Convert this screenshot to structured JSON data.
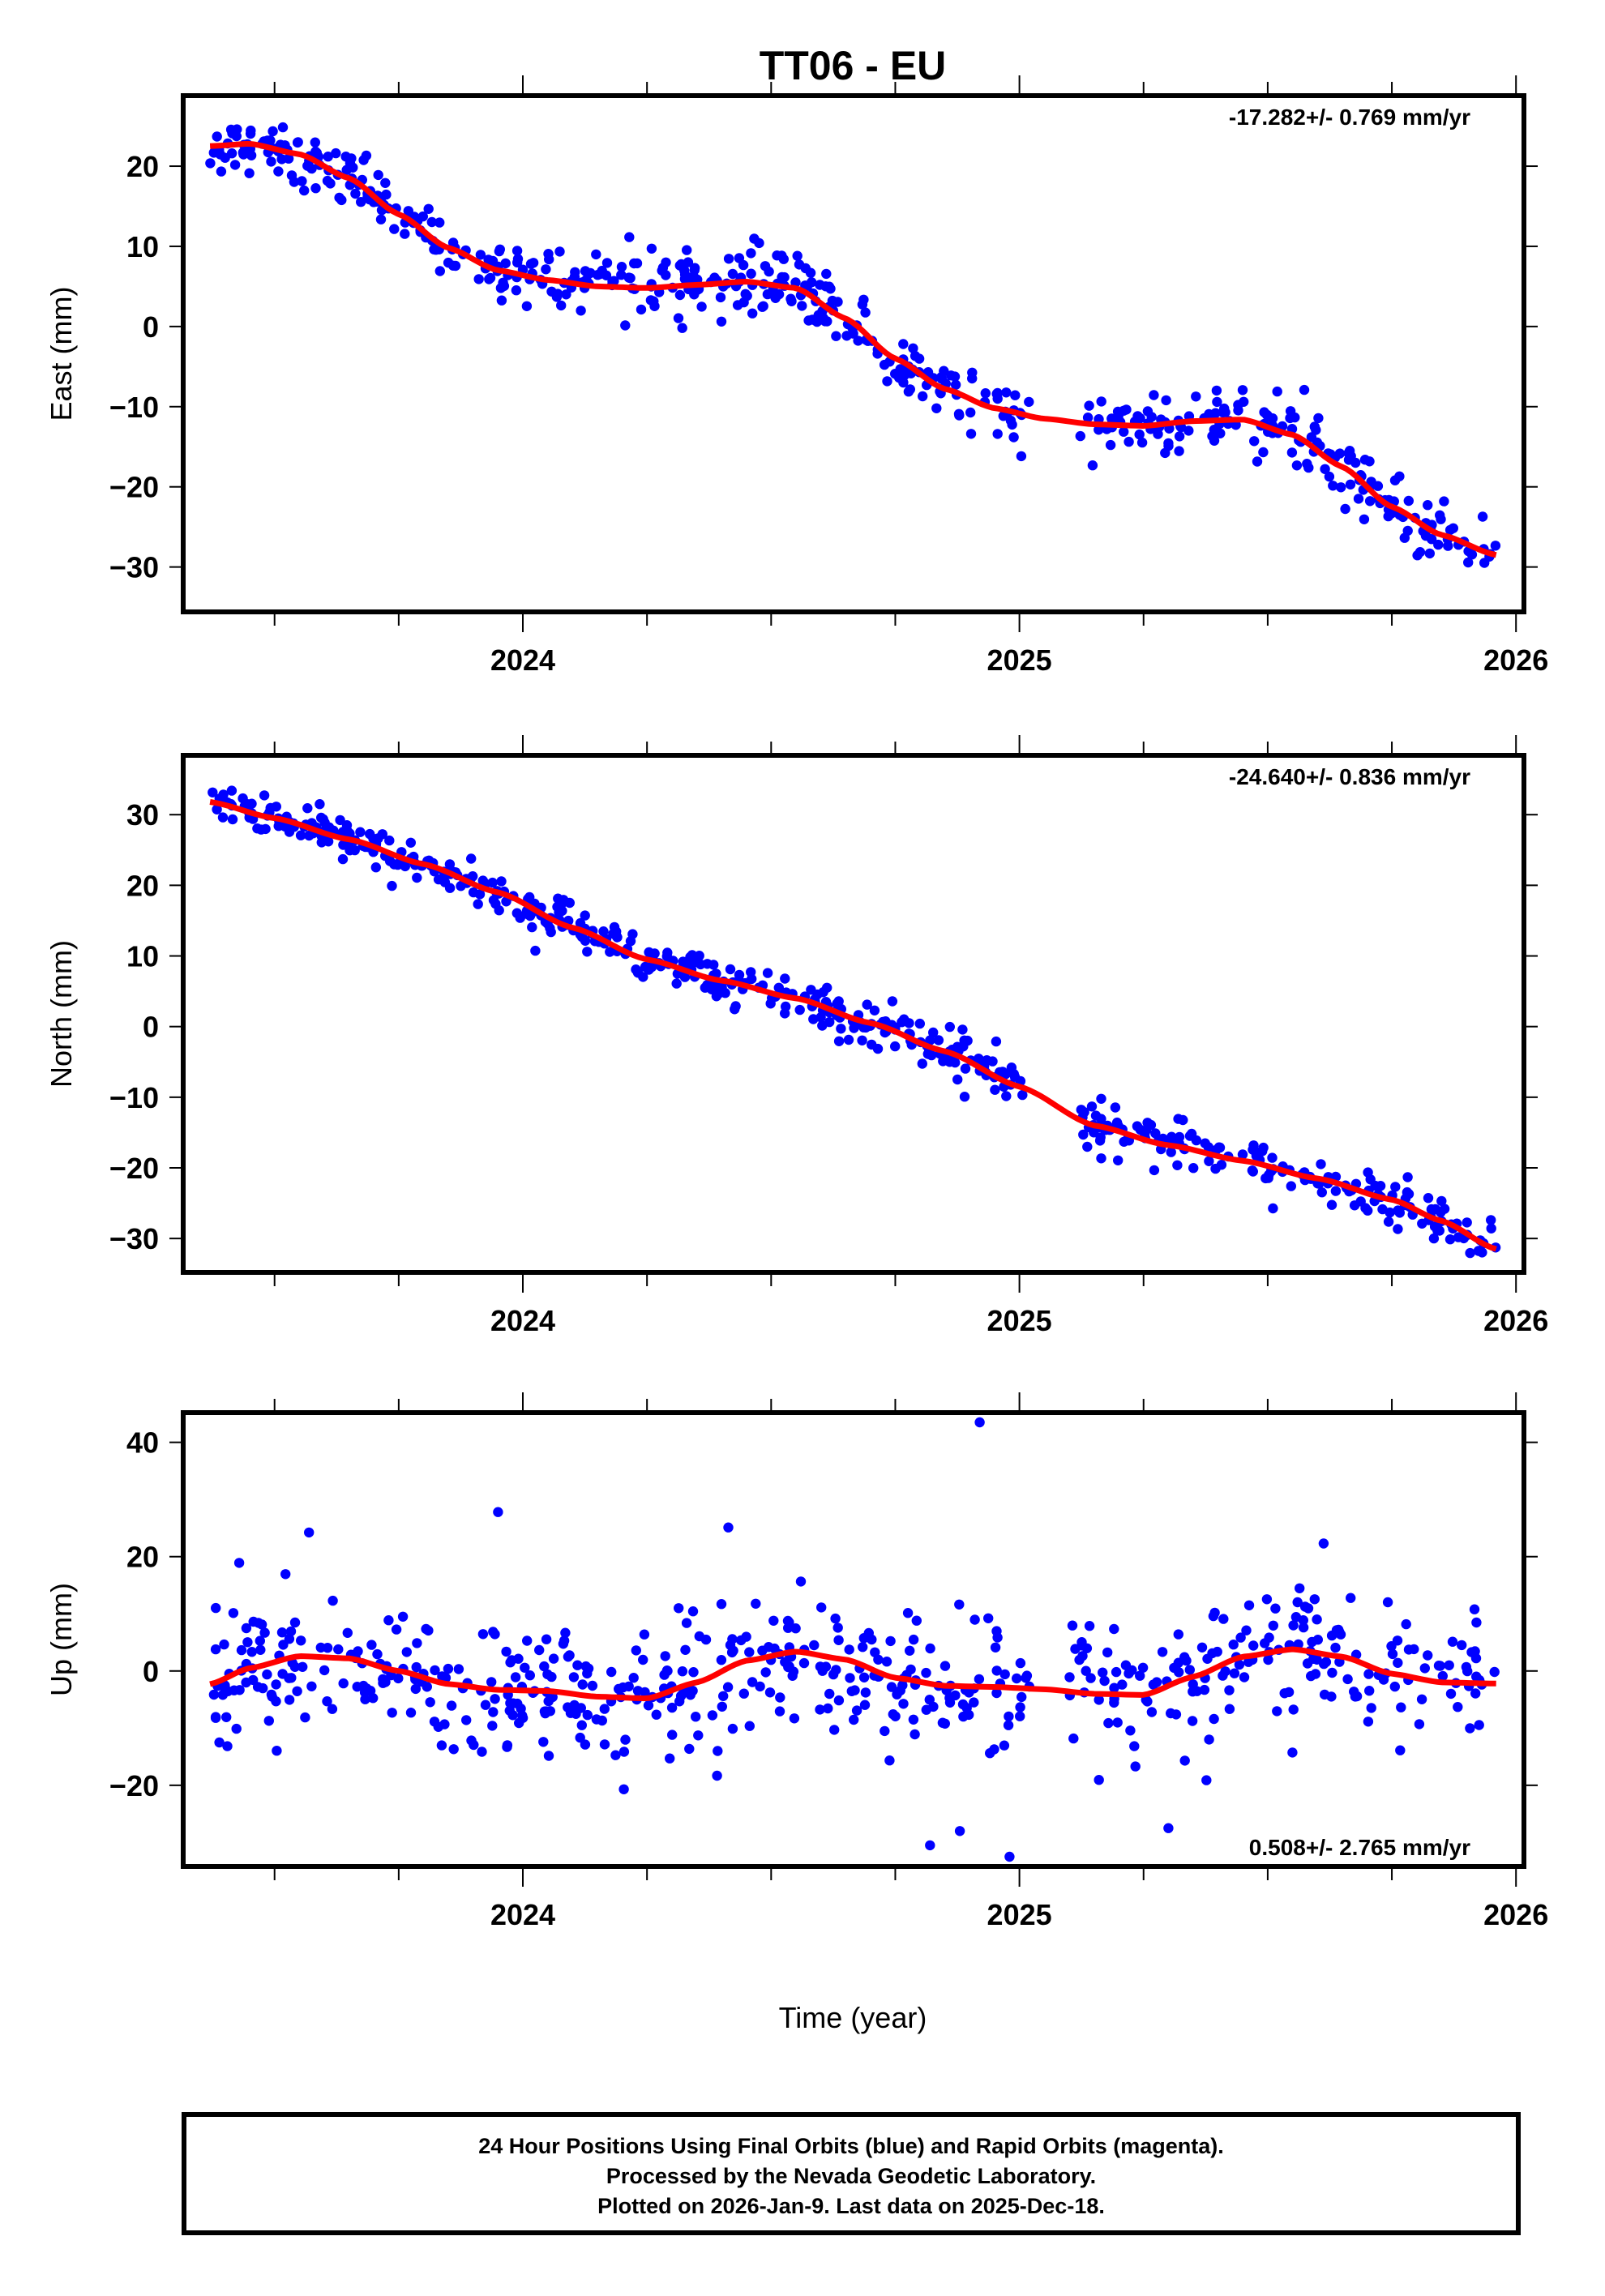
{
  "title": "TT06 - EU",
  "footer": {
    "line1": "24 Hour Positions Using Final Orbits (blue) and Rapid Orbits (magenta).",
    "line2": "Processed by the Nevada Geodetic Laboratory.",
    "line3": "Plotted on 2026-Jan-9. Last data on 2025-Dec-18."
  },
  "colors": {
    "points": "#0000ff",
    "fit": "#ff0000",
    "axes": "#000000"
  },
  "chart_data": [
    {
      "type": "scatter",
      "title": "TT06 - EU",
      "xlabel": "",
      "ylabel": "East (mm)",
      "xlim": [
        2023.316,
        2026.016
      ],
      "ylim": [
        -35.6,
        28.8
      ],
      "xticks": [
        2024,
        2025,
        2026
      ],
      "xtick_labels": [
        "2024",
        "2025",
        "2026"
      ],
      "yticks": [
        20,
        10,
        0,
        -10,
        -20,
        -30
      ],
      "ytick_labels": [
        "20",
        "10",
        "0",
        "−10",
        "−20",
        "−30"
      ],
      "annotation": "-17.282+/- 0.769 mm/yr",
      "annotation_position": "top-right",
      "grid": false,
      "fit_curve": {
        "x": [
          2023.37,
          2023.45,
          2023.55,
          2023.65,
          2023.75,
          2023.85,
          2023.95,
          2024.05,
          2024.15,
          2024.25,
          2024.35,
          2024.45,
          2024.55,
          2024.65,
          2024.75,
          2024.85,
          2024.95,
          2025.05,
          2025.15,
          2025.25,
          2025.35,
          2025.45,
          2025.55,
          2025.65,
          2025.75,
          2025.85,
          2025.96
        ],
        "y": [
          22.5,
          22.8,
          21.5,
          18.5,
          14.0,
          9.8,
          7.0,
          5.8,
          5.0,
          4.8,
          5.2,
          5.6,
          4.8,
          1.0,
          -4.0,
          -7.8,
          -10.2,
          -11.5,
          -12.2,
          -12.4,
          -11.8,
          -11.6,
          -13.5,
          -17.5,
          -22.5,
          -26.0,
          -28.5
        ]
      },
      "noise_mm": 2.4,
      "point_count": 600
    },
    {
      "type": "scatter",
      "xlabel": "",
      "ylabel": "North (mm)",
      "xlim": [
        2023.316,
        2026.016
      ],
      "ylim": [
        -34.8,
        38.4
      ],
      "xticks": [
        2024,
        2025,
        2026
      ],
      "xtick_labels": [
        "2024",
        "2025",
        "2026"
      ],
      "yticks": [
        30,
        20,
        10,
        0,
        -10,
        -20,
        -30
      ],
      "ytick_labels": [
        "30",
        "20",
        "10",
        "0",
        "−10",
        "−20",
        "−30"
      ],
      "annotation": "-24.640+/- 0.836 mm/yr",
      "annotation_position": "top-right",
      "grid": false,
      "fit_curve": {
        "x": [
          2023.37,
          2023.5,
          2023.65,
          2023.8,
          2023.95,
          2024.1,
          2024.25,
          2024.4,
          2024.55,
          2024.7,
          2024.85,
          2025.0,
          2025.15,
          2025.3,
          2025.45,
          2025.6,
          2025.75,
          2025.85,
          2025.96
        ],
        "y": [
          31.8,
          29.5,
          26.5,
          23.0,
          19.0,
          14.0,
          9.5,
          6.5,
          4.0,
          0.5,
          -3.5,
          -8.5,
          -14.0,
          -16.8,
          -19.0,
          -21.5,
          -24.5,
          -27.5,
          -31.5
        ]
      },
      "noise_mm": 2.0,
      "point_count": 600
    },
    {
      "type": "scatter",
      "xlabel": "Time (year)",
      "ylabel": "Up (mm)",
      "xlim": [
        2023.316,
        2026.016
      ],
      "ylim": [
        -34.2,
        45.2
      ],
      "xticks": [
        2024,
        2025,
        2026
      ],
      "xtick_labels": [
        "2024",
        "2025",
        "2026"
      ],
      "yticks": [
        40,
        20,
        0,
        -20
      ],
      "ytick_labels": [
        "40",
        "20",
        "0",
        "−20"
      ],
      "annotation": "0.508+/- 2.765 mm/yr",
      "annotation_position": "bottom-right",
      "grid": false,
      "fit_curve": {
        "x": [
          2023.37,
          2023.45,
          2023.55,
          2023.65,
          2023.75,
          2023.85,
          2023.95,
          2024.05,
          2024.15,
          2024.25,
          2024.35,
          2024.45,
          2024.55,
          2024.65,
          2024.75,
          2024.85,
          2024.95,
          2025.05,
          2025.15,
          2025.25,
          2025.35,
          2025.45,
          2025.55,
          2025.65,
          2025.75,
          2025.85,
          2025.96
        ],
        "y": [
          -2.3,
          0.5,
          2.6,
          2.2,
          0.0,
          -2.3,
          -3.3,
          -3.5,
          -4.5,
          -4.8,
          -2.0,
          1.8,
          3.4,
          2.0,
          -1.2,
          -2.6,
          -2.8,
          -3.2,
          -4.0,
          -4.2,
          -1.0,
          2.5,
          3.8,
          2.5,
          -0.5,
          -2.0,
          -2.2
        ]
      },
      "noise_mm": 7.5,
      "point_count": 600,
      "outliers": {
        "x": [
          2023.95,
          2024.92,
          2024.98,
          2024.82,
          2024.88,
          2025.3
        ],
        "y": [
          27.8,
          43.5,
          -32.5,
          -30.5,
          -28.0,
          -27.5
        ]
      }
    }
  ]
}
